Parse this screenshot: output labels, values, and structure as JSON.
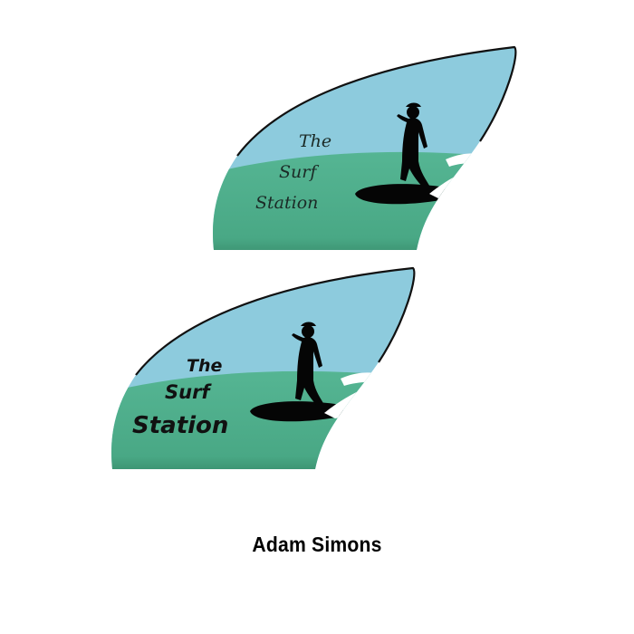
{
  "logo_script": {
    "line1": "The",
    "line2": "Surf",
    "line3": "Station"
  },
  "logo_bold": {
    "line1": "The",
    "line2": "Surf",
    "line3": "Station"
  },
  "author": "Adam Simons",
  "colors": {
    "sky": "#8dcbdd",
    "sea": "#4dae8c",
    "sea_dark": "#2f7d5e",
    "outline": "#111111",
    "silhouette": "#050505",
    "foam": "#ffffff"
  }
}
